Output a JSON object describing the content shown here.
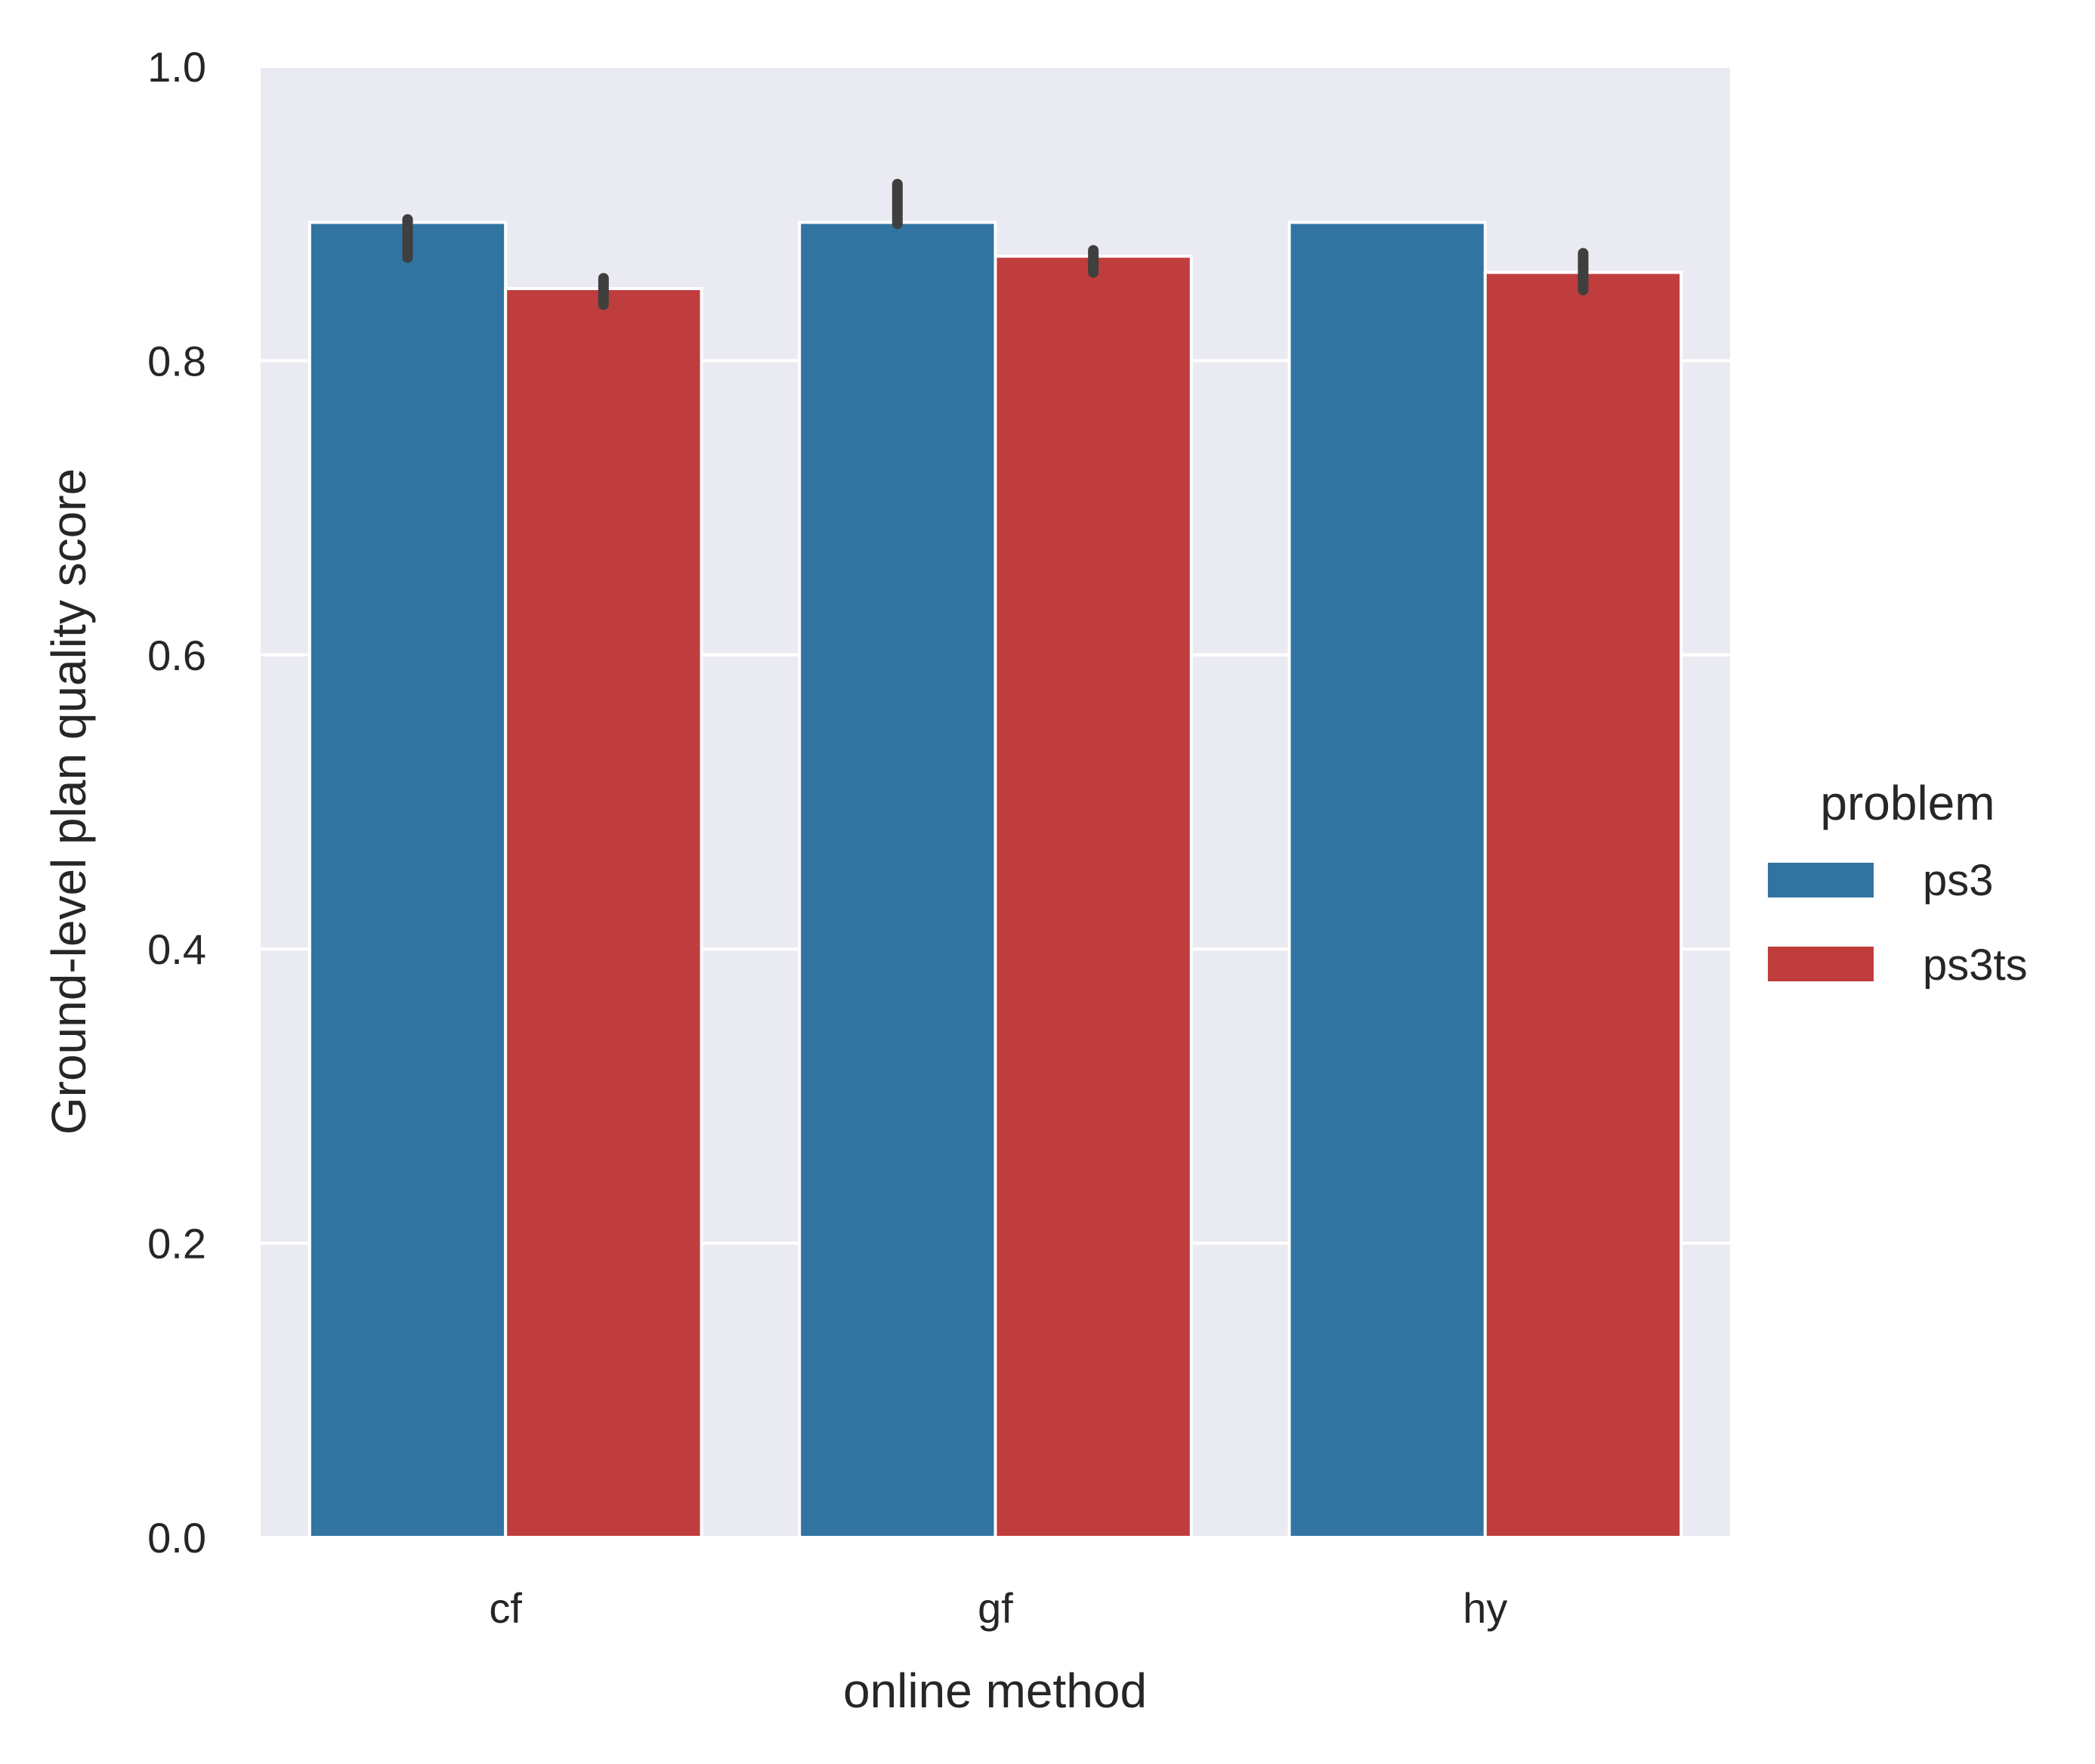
{
  "chart_data": {
    "type": "bar",
    "title": "",
    "xlabel": "online method",
    "ylabel": "Ground-level plan quality score",
    "categories": [
      "cf",
      "gf",
      "hy"
    ],
    "ylim": [
      0.0,
      1.0
    ],
    "yticks": [
      "0.0",
      "0.2",
      "0.4",
      "0.6",
      "0.8",
      "1.0"
    ],
    "grid": true,
    "legend": {
      "title": "problem",
      "placement": "right",
      "entries": [
        "ps3",
        "ps3ts"
      ]
    },
    "series": [
      {
        "name": "ps3",
        "color": "#3274a1",
        "values": [
          0.894,
          0.894,
          0.894
        ],
        "error_low": [
          0.87,
          0.893,
          0.894
        ],
        "error_high": [
          0.896,
          0.92,
          0.894
        ]
      },
      {
        "name": "ps3ts",
        "color": "#c03d3e",
        "values": [
          0.849,
          0.871,
          0.86
        ],
        "error_low": [
          0.838,
          0.86,
          0.848
        ],
        "error_high": [
          0.856,
          0.875,
          0.873
        ]
      }
    ],
    "colors": {
      "plot_background": "#eaeaf2",
      "grid": "#ffffff",
      "error_bar": "#3f3f3f",
      "text": "#262626"
    }
  }
}
